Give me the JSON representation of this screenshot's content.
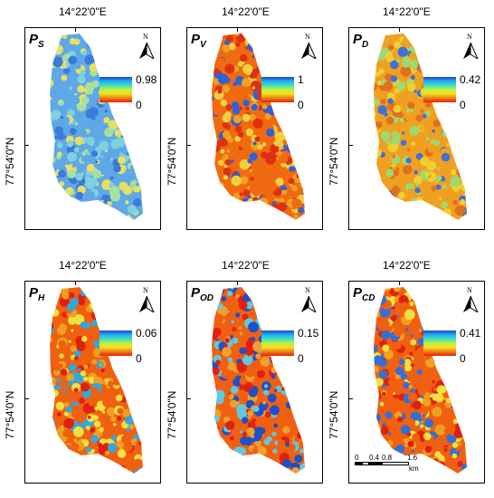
{
  "panels": [
    {
      "id": "ps",
      "symbol": "P",
      "sub": "S",
      "lon_label": "14°22'0\"E",
      "lat_label": "77°54'0\"N",
      "north": "N",
      "legend_max": "0.98",
      "legend_min": "0",
      "map_colors": [
        "#3b7bd8",
        "#5fa8e8",
        "#7fd0e0",
        "#a8e0a0",
        "#e8e060"
      ]
    },
    {
      "id": "pv",
      "symbol": "P",
      "sub": "V",
      "lon_label": "14°22'0\"E",
      "lat_label": "77°54'0\"N",
      "north": "N",
      "legend_max": "1",
      "legend_min": "0",
      "map_colors": [
        "#e03010",
        "#f06a10",
        "#f0a020",
        "#f0d040",
        "#3060d8"
      ]
    },
    {
      "id": "pd",
      "symbol": "P",
      "sub": "D",
      "lon_label": "14°22'0\"E",
      "lat_label": "77°54'0\"N",
      "north": "N",
      "legend_max": "0.42",
      "legend_min": "0",
      "map_colors": [
        "#f0d030",
        "#f0a020",
        "#e07020",
        "#a0d870",
        "#4070d8"
      ]
    },
    {
      "id": "ph",
      "symbol": "P",
      "sub": "H",
      "lon_label": "14°22'0\"E",
      "lat_label": "77°54'0\"N",
      "north": "N",
      "legend_max": "0.06",
      "legend_min": "0",
      "map_colors": [
        "#e02010",
        "#f06010",
        "#f0a020",
        "#f0e040",
        "#30a8e0"
      ]
    },
    {
      "id": "pod",
      "symbol": "P",
      "sub": "OD",
      "lon_label": "14°22'0\"E",
      "lat_label": "77°54'0\"N",
      "north": "N",
      "legend_max": "0.15",
      "legend_min": "0",
      "map_colors": [
        "#e02010",
        "#f06010",
        "#f0a030",
        "#60c8e0",
        "#2050c8"
      ]
    },
    {
      "id": "pcd",
      "symbol": "P",
      "sub": "CD",
      "lon_label": "14°22'0\"E",
      "lat_label": "77°54'0\"N",
      "north": "N",
      "legend_max": "0.41",
      "legend_min": "0",
      "map_colors": [
        "#e02010",
        "#f06010",
        "#f0a020",
        "#f0e040",
        "#3070d8"
      ]
    }
  ],
  "scale_bar": {
    "labels": [
      "0",
      "0.4",
      "0.8",
      "1.6"
    ],
    "unit": "km"
  }
}
